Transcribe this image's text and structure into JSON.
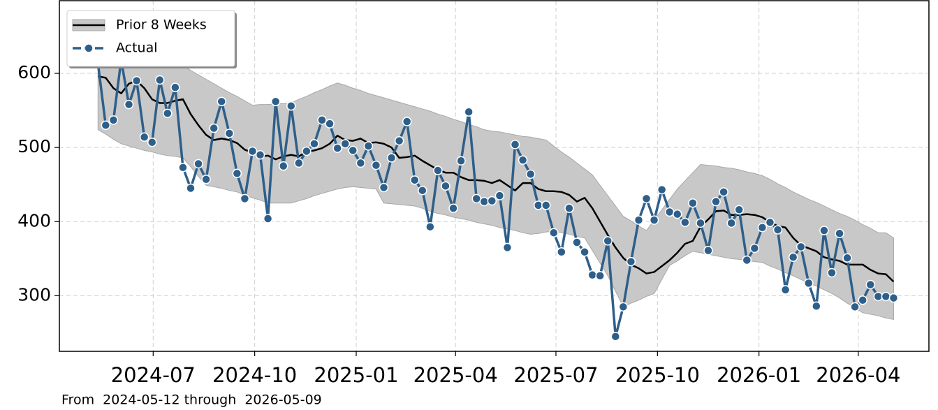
{
  "chart_data": {
    "type": "line",
    "x": [
      "2024-05-12",
      "2024-05-19",
      "2024-05-26",
      "2024-06-02",
      "2024-06-09",
      "2024-06-16",
      "2024-06-23",
      "2024-06-30",
      "2024-07-07",
      "2024-07-14",
      "2024-07-21",
      "2024-07-28",
      "2024-08-04",
      "2024-08-11",
      "2024-08-18",
      "2024-08-25",
      "2024-09-01",
      "2024-09-08",
      "2024-09-15",
      "2024-09-22",
      "2024-09-29",
      "2024-10-06",
      "2024-10-13",
      "2024-10-20",
      "2024-10-27",
      "2024-11-03",
      "2024-11-10",
      "2024-11-17",
      "2024-11-24",
      "2024-12-01",
      "2024-12-08",
      "2024-12-15",
      "2024-12-22",
      "2024-12-29",
      "2025-01-05",
      "2025-01-12",
      "2025-01-19",
      "2025-01-26",
      "2025-02-02",
      "2025-02-09",
      "2025-02-16",
      "2025-02-23",
      "2025-03-02",
      "2025-03-09",
      "2025-03-16",
      "2025-03-23",
      "2025-03-30",
      "2025-04-06",
      "2025-04-13",
      "2025-04-20",
      "2025-04-27",
      "2025-05-04",
      "2025-05-11",
      "2025-05-18",
      "2025-05-25",
      "2025-06-01",
      "2025-06-08",
      "2025-06-15",
      "2025-06-22",
      "2025-06-29",
      "2025-07-06",
      "2025-07-13",
      "2025-07-20",
      "2025-07-27",
      "2025-08-03",
      "2025-08-10",
      "2025-08-17",
      "2025-08-24",
      "2025-08-31",
      "2025-09-07",
      "2025-09-14",
      "2025-09-21",
      "2025-09-28",
      "2025-10-05",
      "2025-10-12",
      "2025-10-19",
      "2025-10-26",
      "2025-11-02",
      "2025-11-09",
      "2025-11-16",
      "2025-11-23",
      "2025-11-30",
      "2025-12-07",
      "2025-12-14",
      "2025-12-21",
      "2025-12-28",
      "2026-01-04",
      "2026-01-11",
      "2026-01-18",
      "2026-01-25",
      "2026-02-01",
      "2026-02-08",
      "2026-02-15",
      "2026-02-22",
      "2026-03-01",
      "2026-03-08",
      "2026-03-15",
      "2026-03-22",
      "2026-03-29",
      "2026-04-05",
      "2026-04-12",
      "2026-04-19",
      "2026-04-26",
      "2026-05-03"
    ],
    "series": [
      {
        "name": "Prior 8 Weeks",
        "color": "#000000",
        "band_color": "#c8c8c8",
        "values": [
          596,
          594,
          580,
          573,
          586,
          590,
          580,
          565,
          560,
          560,
          563,
          565,
          545,
          530,
          517,
          510,
          512,
          510,
          506,
          497,
          493,
          488,
          489,
          484,
          488,
          490,
          488,
          494,
          496,
          499,
          505,
          516,
          510,
          509,
          512,
          506,
          507,
          505,
          500,
          486,
          487,
          489,
          482,
          476,
          470,
          466,
          466,
          460,
          456,
          456,
          455,
          452,
          456,
          449,
          442,
          452,
          452,
          444,
          441,
          441,
          440,
          436,
          427,
          432,
          418,
          400,
          382,
          365,
          351,
          342,
          337,
          330,
          332,
          340,
          348,
          358,
          370,
          374,
          393,
          403,
          414,
          415,
          409,
          409,
          410,
          409,
          406,
          399,
          394,
          392,
          378,
          368,
          364,
          360,
          352,
          349,
          347,
          342,
          342,
          342,
          335,
          330,
          329,
          319
        ],
        "lower": [
          524,
          518,
          511,
          505,
          502,
          499,
          496,
          494,
          491,
          489,
          488,
          486,
          474,
          461,
          449,
          447,
          445,
          442,
          440,
          436,
          432,
          429,
          425,
          425,
          425,
          425,
          428,
          431,
          435,
          438,
          441,
          444,
          446,
          447,
          446,
          445,
          444,
          425,
          424,
          423,
          422,
          421,
          418,
          414,
          411,
          409,
          406,
          404,
          402,
          399,
          397,
          395,
          392,
          390,
          388,
          385,
          383,
          384,
          386,
          387,
          385,
          383,
          380,
          378,
          361,
          344,
          327,
          306,
          285,
          290,
          294,
          299,
          303,
          322,
          341,
          347,
          354,
          360,
          358,
          356,
          354,
          352,
          350,
          349,
          348,
          346,
          345,
          340,
          336,
          331,
          327,
          322,
          317,
          313,
          308,
          303,
          297,
          290,
          284,
          277,
          275,
          273,
          270,
          268
        ],
        "upper": [
          670,
          667,
          664,
          661,
          658,
          655,
          648,
          640,
          633,
          626,
          619,
          611,
          604,
          598,
          592,
          586,
          580,
          574,
          569,
          563,
          557,
          558,
          558,
          559,
          559,
          560,
          565,
          569,
          574,
          578,
          583,
          587,
          584,
          580,
          577,
          573,
          570,
          567,
          564,
          561,
          558,
          555,
          552,
          549,
          545,
          542,
          538,
          535,
          531,
          528,
          524,
          522,
          521,
          519,
          517,
          515,
          514,
          512,
          510,
          502,
          494,
          487,
          479,
          471,
          463,
          449,
          435,
          421,
          407,
          401,
          394,
          388,
          402,
          416,
          430,
          444,
          455,
          466,
          477,
          476,
          475,
          473,
          472,
          470,
          467,
          465,
          462,
          457,
          451,
          446,
          440,
          435,
          430,
          426,
          421,
          416,
          411,
          407,
          402,
          396,
          391,
          385,
          385,
          378
        ]
      },
      {
        "name": "Actual",
        "color": "#2e5f8a",
        "values": [
          613,
          530,
          537,
          618,
          558,
          590,
          514,
          507,
          591,
          546,
          581,
          473,
          445,
          478,
          457,
          526,
          562,
          519,
          465,
          431,
          495,
          490,
          404,
          562,
          475,
          556,
          479,
          495,
          505,
          537,
          532,
          499,
          505,
          496,
          479,
          502,
          476,
          446,
          486,
          509,
          535,
          456,
          442,
          393,
          469,
          448,
          418,
          482,
          548,
          431,
          427,
          428,
          435,
          365,
          504,
          483,
          464,
          422,
          422,
          385,
          359,
          418,
          372,
          359,
          328,
          327,
          374,
          245,
          285,
          346,
          402,
          431,
          402,
          443,
          413,
          410,
          399,
          425,
          398,
          361,
          427,
          440,
          398,
          416,
          348,
          364,
          392,
          399,
          389,
          308,
          352,
          366,
          317,
          286,
          388,
          331,
          384,
          351,
          285,
          294,
          315,
          299,
          299,
          297
        ]
      }
    ],
    "xlim": [
      "2024-04-07",
      "2026-06-04"
    ],
    "xticks": [
      {
        "value": "2024-07-01",
        "label": "2024-07"
      },
      {
        "value": "2024-10-01",
        "label": "2024-10"
      },
      {
        "value": "2025-01-01",
        "label": "2025-01"
      },
      {
        "value": "2025-04-01",
        "label": "2025-04"
      },
      {
        "value": "2025-07-01",
        "label": "2025-07"
      },
      {
        "value": "2025-10-01",
        "label": "2025-10"
      },
      {
        "value": "2026-01-01",
        "label": "2026-01"
      },
      {
        "value": "2026-04-01",
        "label": "2026-04"
      }
    ],
    "ylim": [
      225,
      698
    ],
    "yticks": [
      300,
      400,
      500,
      600
    ],
    "grid": true,
    "legend": "upper left",
    "footnote": "From  2024-05-12 through  2026-05-09"
  }
}
